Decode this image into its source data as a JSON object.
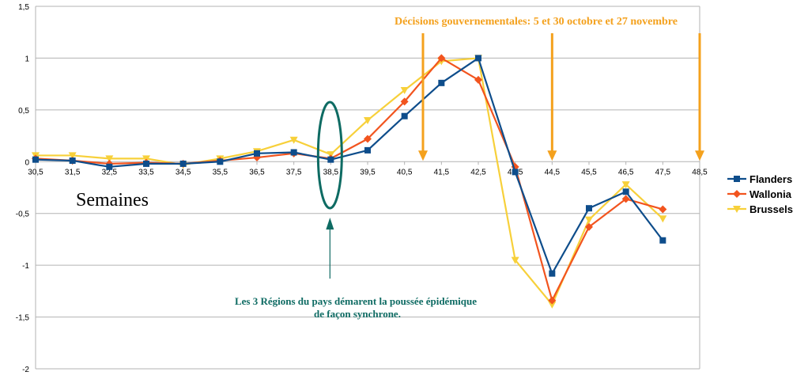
{
  "chart_data": {
    "type": "line",
    "title": "",
    "xlabel": "Semaines",
    "ylabel": "",
    "x": [
      30.5,
      31.5,
      32.5,
      33.5,
      34.5,
      35.5,
      36.5,
      37.5,
      38.5,
      39.5,
      40.5,
      41.5,
      42.5,
      43.5,
      44.5,
      45.5,
      46.5,
      47.5
    ],
    "x_ticks": [
      "30,5",
      "31,5",
      "32,5",
      "33,5",
      "34,5",
      "35,5",
      "36,5",
      "37,5",
      "38,5",
      "39,5",
      "40,5",
      "41,5",
      "42,5",
      "43,5",
      "44,5",
      "45,5",
      "46,5",
      "47,5",
      "48,5"
    ],
    "xlim": [
      30.5,
      48.5
    ],
    "ylim": [
      -2,
      1.5
    ],
    "y_ticks": [
      "-2",
      "-1,5",
      "-1",
      "-0,5",
      "0",
      "0,5",
      "1",
      "1,5"
    ],
    "grid": true,
    "legend_position": "right",
    "series": [
      {
        "name": "Flanders",
        "color": "#0e4d8b",
        "marker": "square",
        "values": [
          0.02,
          0.01,
          -0.05,
          -0.02,
          -0.02,
          0.0,
          0.08,
          0.09,
          0.02,
          0.11,
          0.44,
          0.76,
          1.0,
          -0.1,
          -1.08,
          -0.45,
          -0.29,
          -0.76
        ]
      },
      {
        "name": "Wallonia",
        "color": "#f2541e",
        "marker": "diamond",
        "values": [
          0.03,
          0.01,
          -0.02,
          -0.01,
          -0.02,
          0.01,
          0.04,
          0.08,
          0.03,
          0.22,
          0.58,
          1.0,
          0.79,
          -0.05,
          -1.34,
          -0.63,
          -0.36,
          -0.46
        ]
      },
      {
        "name": "Brussels",
        "color": "#f7d03a",
        "marker": "triangle",
        "values": [
          0.06,
          0.06,
          0.03,
          0.03,
          -0.03,
          0.03,
          0.1,
          0.21,
          0.07,
          0.4,
          0.69,
          0.97,
          1.0,
          -0.95,
          -1.38,
          -0.56,
          -0.22,
          -0.55
        ]
      }
    ],
    "annotations": {
      "decisions_text": "Décisions gouvernementales: 5 et 30 octobre et 27 novembre",
      "decision_x": [
        41.0,
        44.5,
        48.5
      ],
      "regions_line1": "Les 3 Régions du pays démarent la poussée épidémique",
      "regions_line2": "de façon synchrone.",
      "highlight_x": 38.5
    }
  },
  "colors": {
    "grid": "#b3b3b3",
    "orange": "#f4a11d",
    "teal": "#0e6b63"
  }
}
